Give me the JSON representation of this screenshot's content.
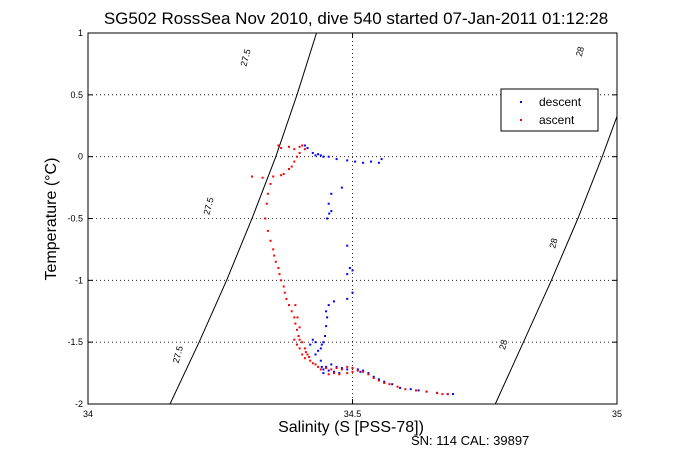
{
  "chart_data": {
    "type": "scatter",
    "title": "SG502 RossSea Nov 2010, dive 540 started 07-Jan-2011 01:12:28",
    "xlabel": "Salinity (S [PSS-78])",
    "ylabel": "Temperature (°C)",
    "xlim": [
      34,
      35
    ],
    "ylim": [
      -2,
      1
    ],
    "x_ticks": [
      "34",
      "34.5",
      "35"
    ],
    "y_ticks": [
      "-2",
      "-1.5",
      "-1",
      "-0.5",
      "0",
      "0.5",
      "1"
    ],
    "grid": true,
    "legend_position": "top-right",
    "legend": [
      {
        "name": "descent",
        "color": "#0000ff"
      },
      {
        "name": "ascent",
        "color": "#ff0000"
      }
    ],
    "footer": "SN: 114  CAL: 39897",
    "contours": [
      {
        "label": "27.5",
        "color": "#000000",
        "points": [
          [
            34.155,
            -2.0
          ],
          [
            34.21,
            -1.5
          ],
          [
            34.262,
            -1.0
          ],
          [
            34.31,
            -0.5
          ],
          [
            34.355,
            0.0
          ],
          [
            34.395,
            0.5
          ],
          [
            34.432,
            1.0
          ]
        ],
        "label_positions": [
          [
            34.17,
            -1.6
          ],
          [
            34.228,
            -0.4
          ],
          [
            34.298,
            0.8
          ]
        ]
      },
      {
        "label": "28",
        "color": "#000000",
        "points": [
          [
            34.77,
            -2.0
          ],
          [
            34.823,
            -1.5
          ],
          [
            34.876,
            -1.0
          ],
          [
            34.926,
            -0.5
          ],
          [
            34.972,
            0.0
          ],
          [
            35.015,
            0.5
          ],
          [
            35.055,
            1.0
          ]
        ],
        "label_positions": [
          [
            34.785,
            -1.52
          ],
          [
            34.88,
            -0.7
          ],
          [
            34.93,
            0.85
          ]
        ]
      }
    ],
    "series": [
      {
        "name": "descent",
        "color": "#0000ff",
        "points": [
          [
            34.41,
            0.09
          ],
          [
            34.415,
            0.07
          ],
          [
            34.425,
            0.03
          ],
          [
            34.43,
            0.01
          ],
          [
            34.435,
            0.02
          ],
          [
            34.44,
            0.01
          ],
          [
            34.445,
            0.0
          ],
          [
            34.455,
            0.0
          ],
          [
            34.47,
            -0.02
          ],
          [
            34.49,
            -0.03
          ],
          [
            34.505,
            -0.04
          ],
          [
            34.52,
            -0.05
          ],
          [
            34.535,
            -0.04
          ],
          [
            34.55,
            -0.05
          ],
          [
            34.555,
            -0.02
          ],
          [
            34.48,
            -0.25
          ],
          [
            34.46,
            -0.3
          ],
          [
            34.455,
            -0.38
          ],
          [
            34.46,
            -0.44
          ],
          [
            34.452,
            -0.5
          ],
          [
            34.456,
            -0.46
          ],
          [
            34.49,
            -0.72
          ],
          [
            34.495,
            -0.9
          ],
          [
            34.5,
            -0.92
          ],
          [
            34.49,
            -0.95
          ],
          [
            34.5,
            -1.1
          ],
          [
            34.49,
            -1.15
          ],
          [
            34.465,
            -1.17
          ],
          [
            34.455,
            -1.2
          ],
          [
            34.45,
            -1.25
          ],
          [
            34.452,
            -1.3
          ],
          [
            34.45,
            -1.37
          ],
          [
            34.448,
            -1.45
          ],
          [
            34.445,
            -1.5
          ],
          [
            34.442,
            -1.52
          ],
          [
            34.44,
            -1.55
          ],
          [
            34.435,
            -1.57
          ],
          [
            34.43,
            -1.5
          ],
          [
            34.425,
            -1.48
          ],
          [
            34.42,
            -1.52
          ],
          [
            34.43,
            -1.6
          ],
          [
            34.44,
            -1.65
          ],
          [
            34.442,
            -1.7
          ],
          [
            34.445,
            -1.72
          ],
          [
            34.45,
            -1.7
          ],
          [
            34.46,
            -1.68
          ],
          [
            34.47,
            -1.7
          ],
          [
            34.48,
            -1.71
          ],
          [
            34.49,
            -1.72
          ],
          [
            34.5,
            -1.71
          ],
          [
            34.51,
            -1.72
          ],
          [
            34.515,
            -1.74
          ],
          [
            34.52,
            -1.73
          ],
          [
            34.53,
            -1.75
          ],
          [
            34.54,
            -1.78
          ],
          [
            34.55,
            -1.8
          ],
          [
            34.56,
            -1.82
          ],
          [
            34.575,
            -1.84
          ],
          [
            34.59,
            -1.87
          ],
          [
            34.61,
            -1.88
          ],
          [
            34.625,
            -1.89
          ],
          [
            34.64,
            -1.9
          ],
          [
            34.66,
            -1.91
          ],
          [
            34.68,
            -1.92
          ],
          [
            34.69,
            -1.92
          ],
          [
            34.445,
            -1.75
          ],
          [
            34.455,
            -1.73
          ],
          [
            34.465,
            -1.74
          ],
          [
            34.475,
            -1.75
          ]
        ]
      },
      {
        "name": "ascent",
        "color": "#ff0000",
        "points": [
          [
            34.36,
            0.09
          ],
          [
            34.365,
            0.07
          ],
          [
            34.38,
            0.08
          ],
          [
            34.39,
            0.06
          ],
          [
            34.4,
            0.08
          ],
          [
            34.405,
            0.09
          ],
          [
            34.41,
            0.06
          ],
          [
            34.4,
            0.03
          ],
          [
            34.395,
            0.0
          ],
          [
            34.39,
            -0.04
          ],
          [
            34.385,
            -0.08
          ],
          [
            34.38,
            -0.1
          ],
          [
            34.37,
            -0.14
          ],
          [
            34.365,
            -0.15
          ],
          [
            34.31,
            -0.16
          ],
          [
            34.33,
            -0.17
          ],
          [
            34.35,
            -0.16
          ],
          [
            34.345,
            -0.22
          ],
          [
            34.34,
            -0.3
          ],
          [
            34.338,
            -0.38
          ],
          [
            34.335,
            -0.5
          ],
          [
            34.34,
            -0.6
          ],
          [
            34.345,
            -0.68
          ],
          [
            34.35,
            -0.75
          ],
          [
            34.352,
            -0.8
          ],
          [
            34.355,
            -0.85
          ],
          [
            34.36,
            -0.9
          ],
          [
            34.362,
            -0.95
          ],
          [
            34.365,
            -1.0
          ],
          [
            34.37,
            -1.05
          ],
          [
            34.372,
            -1.1
          ],
          [
            34.375,
            -1.15
          ],
          [
            34.38,
            -1.2
          ],
          [
            34.385,
            -1.25
          ],
          [
            34.39,
            -1.3
          ],
          [
            34.392,
            -1.35
          ],
          [
            34.395,
            -1.4
          ],
          [
            34.398,
            -1.45
          ],
          [
            34.4,
            -1.48
          ],
          [
            34.405,
            -1.5
          ],
          [
            34.41,
            -1.55
          ],
          [
            34.412,
            -1.58
          ],
          [
            34.415,
            -1.6
          ],
          [
            34.418,
            -1.62
          ],
          [
            34.42,
            -1.65
          ],
          [
            34.425,
            -1.67
          ],
          [
            34.43,
            -1.68
          ],
          [
            34.435,
            -1.7
          ],
          [
            34.44,
            -1.72
          ],
          [
            34.45,
            -1.71
          ],
          [
            34.46,
            -1.72
          ],
          [
            34.47,
            -1.71
          ],
          [
            34.48,
            -1.72
          ],
          [
            34.49,
            -1.7
          ],
          [
            34.5,
            -1.71
          ],
          [
            34.51,
            -1.73
          ],
          [
            34.52,
            -1.74
          ],
          [
            34.53,
            -1.76
          ],
          [
            34.54,
            -1.79
          ],
          [
            34.55,
            -1.81
          ],
          [
            34.56,
            -1.83
          ],
          [
            34.57,
            -1.84
          ],
          [
            34.585,
            -1.86
          ],
          [
            34.6,
            -1.88
          ],
          [
            34.62,
            -1.89
          ],
          [
            34.64,
            -1.9
          ],
          [
            34.66,
            -1.91
          ],
          [
            34.67,
            -1.92
          ],
          [
            34.68,
            -1.92
          ],
          [
            34.39,
            -1.48
          ],
          [
            34.395,
            -1.52
          ],
          [
            34.4,
            -1.55
          ],
          [
            34.405,
            -1.6
          ],
          [
            34.41,
            -1.63
          ],
          [
            34.455,
            -1.76
          ],
          [
            34.465,
            -1.75
          ],
          [
            34.475,
            -1.76
          ],
          [
            34.49,
            -1.75
          ],
          [
            34.5,
            -1.74
          ],
          [
            34.392,
            -1.2
          ],
          [
            34.396,
            -1.3
          ],
          [
            34.4,
            -1.38
          ]
        ]
      }
    ]
  }
}
